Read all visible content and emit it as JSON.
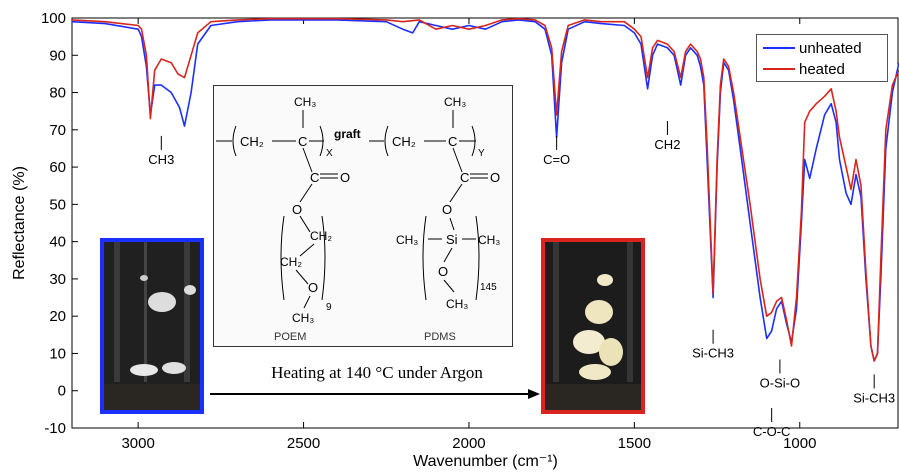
{
  "chart_data": {
    "type": "line",
    "xlabel": "Wavenumber (cm⁻¹)",
    "ylabel": "Reflectance (%)",
    "xlim": [
      3200,
      700
    ],
    "ylim": [
      -10,
      100
    ],
    "x_reversed": true,
    "x_ticks": [
      "3000",
      "2500",
      "2000",
      "1500",
      "1000"
    ],
    "y_ticks": [
      "100",
      "90",
      "80",
      "70",
      "60",
      "50",
      "40",
      "30",
      "20",
      "10",
      "0",
      "-10"
    ],
    "grid": false,
    "legend_position": "top-right",
    "series": [
      {
        "name": "unheated",
        "color": "#1b2fff",
        "points": [
          [
            3200,
            99
          ],
          [
            3100,
            98.5
          ],
          [
            3000,
            97
          ],
          [
            2990,
            95
          ],
          [
            2975,
            87
          ],
          [
            2963,
            74
          ],
          [
            2950,
            82
          ],
          [
            2930,
            82
          ],
          [
            2900,
            80
          ],
          [
            2875,
            76
          ],
          [
            2860,
            71
          ],
          [
            2840,
            80
          ],
          [
            2820,
            93
          ],
          [
            2780,
            98
          ],
          [
            2700,
            99
          ],
          [
            2600,
            99.5
          ],
          [
            2400,
            99.5
          ],
          [
            2250,
            99
          ],
          [
            2200,
            97
          ],
          [
            2170,
            96
          ],
          [
            2150,
            99
          ],
          [
            2100,
            98
          ],
          [
            2050,
            97
          ],
          [
            2000,
            98
          ],
          [
            1950,
            97
          ],
          [
            1900,
            99
          ],
          [
            1850,
            99.5
          ],
          [
            1800,
            99
          ],
          [
            1770,
            97
          ],
          [
            1750,
            90
          ],
          [
            1735,
            68
          ],
          [
            1720,
            88
          ],
          [
            1700,
            97
          ],
          [
            1650,
            99
          ],
          [
            1600,
            98.5
          ],
          [
            1530,
            98
          ],
          [
            1500,
            96
          ],
          [
            1480,
            93
          ],
          [
            1460,
            81
          ],
          [
            1445,
            90
          ],
          [
            1430,
            93
          ],
          [
            1400,
            92
          ],
          [
            1380,
            90
          ],
          [
            1360,
            82
          ],
          [
            1345,
            90
          ],
          [
            1330,
            92
          ],
          [
            1310,
            90
          ],
          [
            1300,
            87
          ],
          [
            1290,
            82
          ],
          [
            1280,
            62
          ],
          [
            1262,
            25
          ],
          [
            1250,
            60
          ],
          [
            1240,
            80
          ],
          [
            1230,
            88
          ],
          [
            1215,
            86
          ],
          [
            1200,
            78
          ],
          [
            1180,
            65
          ],
          [
            1150,
            45
          ],
          [
            1120,
            25
          ],
          [
            1100,
            14
          ],
          [
            1085,
            16
          ],
          [
            1070,
            22
          ],
          [
            1055,
            24
          ],
          [
            1040,
            18
          ],
          [
            1025,
            13
          ],
          [
            1010,
            22
          ],
          [
            995,
            45
          ],
          [
            985,
            62
          ],
          [
            970,
            57
          ],
          [
            950,
            65
          ],
          [
            925,
            74
          ],
          [
            905,
            77
          ],
          [
            890,
            72
          ],
          [
            880,
            62
          ],
          [
            860,
            53
          ],
          [
            845,
            50
          ],
          [
            830,
            58
          ],
          [
            815,
            52
          ],
          [
            800,
            30
          ],
          [
            785,
            12
          ],
          [
            775,
            8
          ],
          [
            765,
            10
          ],
          [
            755,
            30
          ],
          [
            740,
            65
          ],
          [
            720,
            80
          ],
          [
            700,
            88
          ]
        ]
      },
      {
        "name": "heated",
        "color": "#d8261e",
        "points": [
          [
            3200,
            99.5
          ],
          [
            3100,
            99
          ],
          [
            3000,
            98
          ],
          [
            2990,
            97
          ],
          [
            2975,
            90
          ],
          [
            2963,
            73
          ],
          [
            2950,
            86
          ],
          [
            2930,
            89
          ],
          [
            2900,
            88
          ],
          [
            2880,
            85
          ],
          [
            2860,
            84
          ],
          [
            2840,
            90
          ],
          [
            2820,
            96
          ],
          [
            2780,
            99
          ],
          [
            2700,
            99.5
          ],
          [
            2600,
            99.8
          ],
          [
            2400,
            99.8
          ],
          [
            2250,
            99.5
          ],
          [
            2200,
            99
          ],
          [
            2150,
            99.5
          ],
          [
            2100,
            97
          ],
          [
            2050,
            98
          ],
          [
            2000,
            97
          ],
          [
            1950,
            98
          ],
          [
            1900,
            99.5
          ],
          [
            1850,
            99.8
          ],
          [
            1800,
            99.5
          ],
          [
            1770,
            98
          ],
          [
            1750,
            92
          ],
          [
            1735,
            74
          ],
          [
            1720,
            91
          ],
          [
            1700,
            98
          ],
          [
            1650,
            99.5
          ],
          [
            1600,
            99
          ],
          [
            1530,
            99
          ],
          [
            1500,
            97
          ],
          [
            1480,
            95
          ],
          [
            1460,
            84
          ],
          [
            1445,
            92
          ],
          [
            1430,
            94
          ],
          [
            1400,
            93
          ],
          [
            1380,
            91
          ],
          [
            1360,
            84
          ],
          [
            1345,
            91
          ],
          [
            1330,
            93
          ],
          [
            1310,
            91
          ],
          [
            1300,
            89
          ],
          [
            1290,
            84
          ],
          [
            1280,
            66
          ],
          [
            1262,
            26
          ],
          [
            1250,
            62
          ],
          [
            1240,
            82
          ],
          [
            1230,
            89
          ],
          [
            1215,
            87
          ],
          [
            1200,
            80
          ],
          [
            1180,
            68
          ],
          [
            1150,
            50
          ],
          [
            1120,
            30
          ],
          [
            1100,
            20
          ],
          [
            1085,
            21
          ],
          [
            1070,
            24
          ],
          [
            1055,
            25
          ],
          [
            1040,
            19
          ],
          [
            1025,
            12
          ],
          [
            1010,
            25
          ],
          [
            995,
            48
          ],
          [
            985,
            72
          ],
          [
            970,
            75
          ],
          [
            950,
            77
          ],
          [
            925,
            79
          ],
          [
            905,
            81
          ],
          [
            890,
            75
          ],
          [
            880,
            68
          ],
          [
            860,
            60
          ],
          [
            845,
            54
          ],
          [
            830,
            62
          ],
          [
            815,
            55
          ],
          [
            800,
            32
          ],
          [
            785,
            12
          ],
          [
            775,
            8
          ],
          [
            765,
            10
          ],
          [
            755,
            35
          ],
          [
            740,
            70
          ],
          [
            720,
            82
          ],
          [
            700,
            86
          ]
        ]
      }
    ],
    "annotations": [
      {
        "label": "CH3",
        "x": 2930,
        "y": 63
      },
      {
        "label": "C=O",
        "x": 1735,
        "y": 63
      },
      {
        "label": "CH2",
        "x": 1400,
        "y": 67
      },
      {
        "label": "Si-CH3",
        "x": 1262,
        "y": 11
      },
      {
        "label": "O-Si-O",
        "x": 1060,
        "y": 3
      },
      {
        "label": "C-O-C",
        "x": 1085,
        "y": -10
      },
      {
        "label": "Si-CH3",
        "x": 775,
        "y": -1
      }
    ]
  },
  "structure": {
    "poem_label": "POEM",
    "pdms_label": "PDMS",
    "graft_label": "graft",
    "x_sub": "X",
    "y_sub": "Y",
    "n_poem": "9",
    "n_pdms": "145"
  },
  "caption": "Heating at 140 °C under Argon"
}
